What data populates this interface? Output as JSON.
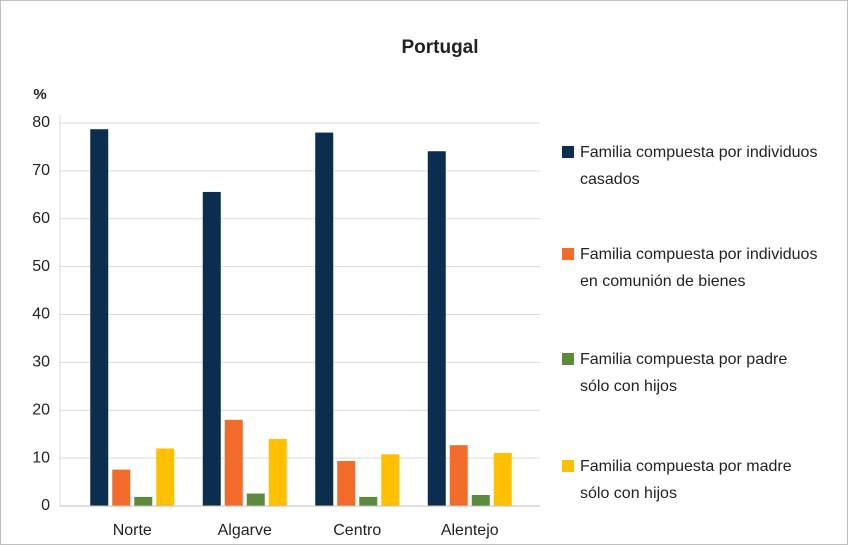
{
  "chart_data": {
    "type": "bar",
    "title": "Portugal",
    "y_label": "%",
    "categories": [
      "Norte",
      "Algarve",
      "Centro",
      "Alentejo"
    ],
    "series": [
      {
        "name": "Familia compuesta por individuos casados",
        "color": "#0b2d4e",
        "values": [
          78.7,
          65.6,
          78.0,
          74.1
        ]
      },
      {
        "name": "Familia compuesta por individuos en comunión de bienes",
        "color": "#f26b2b",
        "values": [
          7.6,
          18.0,
          9.4,
          12.7
        ]
      },
      {
        "name": "Familia compuesta por padre sólo con hijos",
        "color": "#5a8a3a",
        "values": [
          1.9,
          2.6,
          1.9,
          2.3
        ]
      },
      {
        "name": "Familia compuesta por madre sólo con hijos",
        "color": "#ffc000",
        "values": [
          12.0,
          14.0,
          10.8,
          11.1
        ]
      }
    ],
    "ylim": [
      0,
      80
    ],
    "yticks": [
      0,
      10,
      20,
      30,
      40,
      50,
      60,
      70,
      80
    ],
    "grid": true,
    "legend": "right"
  }
}
